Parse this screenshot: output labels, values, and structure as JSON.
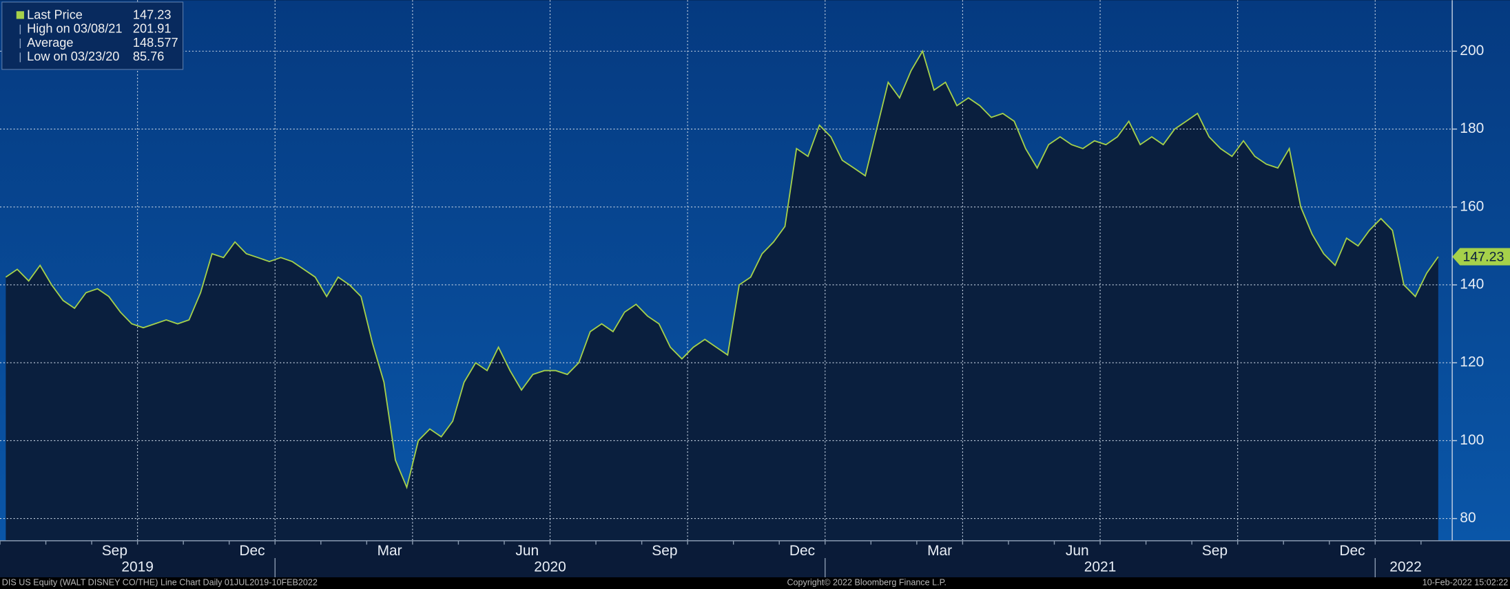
{
  "chart_data": {
    "type": "line",
    "series": [
      {
        "name": "Last Price",
        "color": "#a6d14a",
        "x": [
          "2019-07",
          "2019-07",
          "2019-07",
          "2019-07",
          "2019-08",
          "2019-08",
          "2019-08",
          "2019-08",
          "2019-09",
          "2019-09",
          "2019-09",
          "2019-09",
          "2019-10",
          "2019-10",
          "2019-10",
          "2019-10",
          "2019-11",
          "2019-11",
          "2019-11",
          "2019-11",
          "2019-12",
          "2019-12",
          "2019-12",
          "2019-12",
          "2020-01",
          "2020-01",
          "2020-01",
          "2020-01",
          "2020-02",
          "2020-02",
          "2020-02",
          "2020-02",
          "2020-03",
          "2020-03",
          "2020-03",
          "2020-03",
          "2020-04",
          "2020-04",
          "2020-04",
          "2020-04",
          "2020-05",
          "2020-05",
          "2020-05",
          "2020-05",
          "2020-06",
          "2020-06",
          "2020-06",
          "2020-06",
          "2020-07",
          "2020-07",
          "2020-07",
          "2020-07",
          "2020-08",
          "2020-08",
          "2020-08",
          "2020-08",
          "2020-09",
          "2020-09",
          "2020-09",
          "2020-09",
          "2020-10",
          "2020-10",
          "2020-10",
          "2020-10",
          "2020-11",
          "2020-11",
          "2020-11",
          "2020-11",
          "2020-12",
          "2020-12",
          "2020-12",
          "2020-12",
          "2021-01",
          "2021-01",
          "2021-01",
          "2021-01",
          "2021-02",
          "2021-02",
          "2021-02",
          "2021-02",
          "2021-03",
          "2021-03",
          "2021-03",
          "2021-03",
          "2021-04",
          "2021-04",
          "2021-04",
          "2021-04",
          "2021-05",
          "2021-05",
          "2021-05",
          "2021-05",
          "2021-06",
          "2021-06",
          "2021-06",
          "2021-06",
          "2021-07",
          "2021-07",
          "2021-07",
          "2021-07",
          "2021-08",
          "2021-08",
          "2021-08",
          "2021-08",
          "2021-09",
          "2021-09",
          "2021-09",
          "2021-09",
          "2021-10",
          "2021-10",
          "2021-10",
          "2021-10",
          "2021-11",
          "2021-11",
          "2021-11",
          "2021-11",
          "2021-12",
          "2021-12",
          "2021-12",
          "2021-12",
          "2022-01",
          "2022-01",
          "2022-01",
          "2022-01",
          "2022-02",
          "2022-02"
        ],
        "values": [
          142,
          144,
          141,
          145,
          140,
          136,
          134,
          138,
          139,
          137,
          133,
          130,
          129,
          130,
          131,
          130,
          131,
          138,
          148,
          147,
          151,
          148,
          147,
          146,
          147,
          146,
          144,
          142,
          137,
          142,
          140,
          137,
          125,
          115,
          95,
          88,
          100,
          103,
          101,
          105,
          115,
          120,
          118,
          124,
          118,
          113,
          117,
          118,
          118,
          117,
          120,
          128,
          130,
          128,
          133,
          135,
          132,
          130,
          124,
          121,
          124,
          126,
          124,
          122,
          140,
          142,
          148,
          151,
          155,
          175,
          173,
          181,
          178,
          172,
          170,
          168,
          180,
          192,
          188,
          195,
          200,
          190,
          192,
          186,
          188,
          186,
          183,
          184,
          182,
          175,
          170,
          176,
          178,
          176,
          175,
          177,
          176,
          178,
          182,
          176,
          178,
          176,
          180,
          182,
          184,
          178,
          175,
          173,
          177,
          173,
          171,
          170,
          175,
          160,
          153,
          148,
          145,
          152,
          150,
          154,
          157,
          154,
          140,
          137,
          143,
          147.23
        ]
      }
    ],
    "ylim": [
      74.3,
      213.1
    ],
    "yticks": [
      80,
      100,
      120,
      140,
      160,
      180,
      200
    ],
    "xticks": [
      {
        "value": "2019-09",
        "label": "Sep"
      },
      {
        "value": "2019-12",
        "label": "Dec"
      },
      {
        "value": "2020-03",
        "label": "Mar"
      },
      {
        "value": "2020-06",
        "label": "Jun"
      },
      {
        "value": "2020-09",
        "label": "Sep"
      },
      {
        "value": "2020-12",
        "label": "Dec"
      },
      {
        "value": "2021-03",
        "label": "Mar"
      },
      {
        "value": "2021-06",
        "label": "Jun"
      },
      {
        "value": "2021-09",
        "label": "Sep"
      },
      {
        "value": "2021-12",
        "label": "Dec"
      }
    ],
    "year_ticks": [
      "2019",
      "2020",
      "2021",
      "2022"
    ],
    "grid": true,
    "legend": "upper left",
    "stats": [
      {
        "label": "Last Price",
        "value": 147.23
      },
      {
        "label": "High on 03/08/21",
        "value": 201.91
      },
      {
        "label": "Average",
        "value": 148.577
      },
      {
        "label": "Low on 03/23/20",
        "value": 85.76
      }
    ],
    "footer": {
      "left": "DIS US Equity (WALT DISNEY CO/THE) Line Chart  Daily 01JUL2019-10FEB2022",
      "center": "Copyright© 2022 Bloomberg Finance L.P.",
      "right": "10-Feb-2022 15:02:22"
    }
  }
}
